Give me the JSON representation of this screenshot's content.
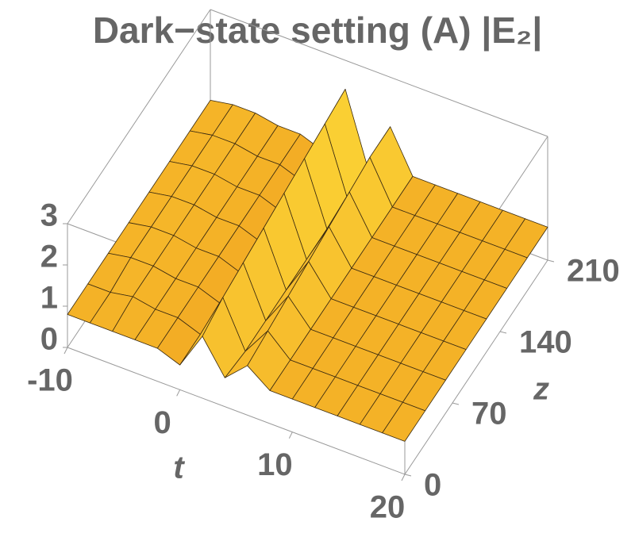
{
  "chart_data": {
    "type": "surface",
    "title": "Dark−state setting (A) |E₂|",
    "xlabel": "t",
    "ylabel": "z",
    "x": [
      -10,
      -8,
      -6,
      -4,
      -2,
      0,
      2,
      4,
      6,
      8,
      10,
      12,
      14,
      16,
      18,
      20
    ],
    "y": [
      0,
      30,
      60,
      90,
      120,
      150,
      180,
      210
    ],
    "values": [
      [
        0.8,
        0.8,
        0.8,
        0.8,
        0.8,
        0.6,
        1.5,
        0.7,
        1.2,
        0.8,
        0.8,
        0.8,
        0.8,
        0.8,
        0.8,
        0.8
      ],
      [
        0.8,
        0.8,
        0.9,
        0.8,
        0.8,
        0.6,
        1.7,
        0.6,
        1.3,
        0.8,
        0.8,
        0.8,
        0.8,
        0.8,
        0.8,
        0.8
      ],
      [
        0.8,
        0.9,
        0.9,
        0.8,
        0.8,
        0.6,
        1.8,
        0.6,
        1.4,
        0.8,
        0.8,
        0.8,
        0.8,
        0.8,
        0.8,
        0.8
      ],
      [
        0.8,
        0.9,
        0.9,
        0.8,
        0.8,
        0.6,
        1.9,
        0.6,
        1.5,
        0.8,
        0.8,
        0.8,
        0.8,
        0.8,
        0.8,
        0.8
      ],
      [
        0.8,
        0.9,
        0.9,
        0.8,
        0.8,
        0.6,
        2.0,
        0.6,
        1.6,
        0.8,
        0.8,
        0.8,
        0.8,
        0.8,
        0.8,
        0.8
      ],
      [
        0.8,
        0.9,
        0.9,
        0.8,
        0.8,
        0.6,
        2.1,
        0.6,
        1.7,
        0.8,
        0.8,
        0.8,
        0.8,
        0.8,
        0.8,
        0.8
      ],
      [
        0.8,
        0.9,
        0.9,
        0.8,
        0.8,
        0.6,
        2.2,
        0.6,
        1.8,
        0.8,
        0.8,
        0.8,
        0.8,
        0.8,
        0.8,
        0.8
      ],
      [
        0.8,
        0.9,
        0.9,
        0.8,
        0.8,
        0.6,
        2.3,
        0.6,
        1.8,
        0.8,
        0.8,
        0.8,
        0.8,
        0.8,
        0.8,
        0.8
      ]
    ],
    "xlim": [
      -10,
      20
    ],
    "ylim": [
      0,
      210
    ],
    "vlim": [
      0,
      3
    ],
    "xticks": [
      -10,
      0,
      10,
      20
    ],
    "yticks": [
      0,
      70,
      140,
      210
    ],
    "vticks": [
      0,
      1,
      2,
      3
    ],
    "colormap": [
      "#ec8c18",
      "#ffe43c"
    ]
  }
}
